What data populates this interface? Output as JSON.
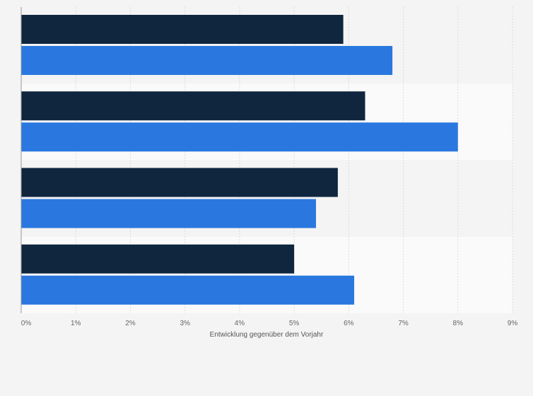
{
  "chart_data": {
    "type": "bar",
    "orientation": "horizontal",
    "categories": [
      "",
      "",
      "",
      ""
    ],
    "series": [
      {
        "values": [
          5.9,
          6.3,
          5.8,
          5.0
        ],
        "color": "#10263f"
      },
      {
        "values": [
          6.8,
          8.0,
          5.4,
          6.1
        ],
        "color": "#2a78df"
      }
    ],
    "xlabel": "Entwicklung gegenüber dem Vorjahr",
    "xlim": [
      0,
      9
    ],
    "ticks": [
      0,
      1,
      2,
      3,
      4,
      5,
      6,
      7,
      8,
      9
    ],
    "tick_labels": [
      "0%",
      "1%",
      "2%",
      "3%",
      "4%",
      "5%",
      "6%",
      "7%",
      "8%",
      "9%"
    ],
    "grid": true,
    "legend": "none"
  },
  "colors": {
    "background": "#f4f4f4",
    "band_alt": "#fafafa",
    "gridline": "#dcdcdc",
    "axis": "#999999"
  }
}
